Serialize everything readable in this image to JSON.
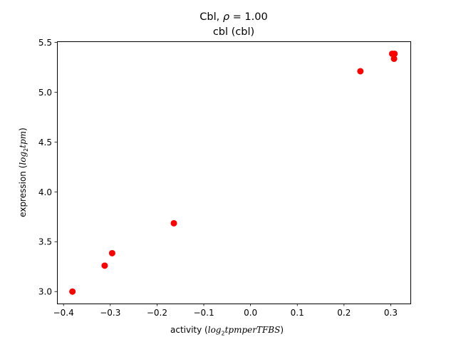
{
  "chart_data": {
    "type": "scatter",
    "title": {
      "line1_prefix": "Cbl, ",
      "line1_rho": "ρ",
      "line1_suffix": " = 1.00",
      "line2": "cbl (cbl)"
    },
    "xlabel": {
      "prefix": "activity (",
      "math_base": "log",
      "math_sub": "2",
      "math_rest": "tpmperTFBS",
      "suffix": ")"
    },
    "ylabel": {
      "prefix": "expression (",
      "math_base": "log",
      "math_sub": "2",
      "math_rest": "tpm",
      "suffix": ")"
    },
    "xlim": [
      -0.414,
      0.342
    ],
    "ylim": [
      2.88,
      5.51
    ],
    "xticks": [
      {
        "value": -0.4,
        "label": "−0.4"
      },
      {
        "value": -0.3,
        "label": "−0.3"
      },
      {
        "value": -0.2,
        "label": "−0.2"
      },
      {
        "value": -0.1,
        "label": "−0.1"
      },
      {
        "value": 0.0,
        "label": "0.0"
      },
      {
        "value": 0.1,
        "label": "0.1"
      },
      {
        "value": 0.2,
        "label": "0.2"
      },
      {
        "value": 0.3,
        "label": "0.3"
      }
    ],
    "yticks": [
      {
        "value": 3.0,
        "label": "3.0"
      },
      {
        "value": 3.5,
        "label": "3.5"
      },
      {
        "value": 4.0,
        "label": "4.0"
      },
      {
        "value": 4.5,
        "label": "4.5"
      },
      {
        "value": 5.0,
        "label": "5.0"
      },
      {
        "value": 5.5,
        "label": "5.5"
      }
    ],
    "grid": false,
    "marker_color": "#ff0000",
    "points": [
      {
        "x": -0.381,
        "y": 3.0
      },
      {
        "x": -0.312,
        "y": 3.26
      },
      {
        "x": -0.296,
        "y": 3.385
      },
      {
        "x": -0.164,
        "y": 3.685
      },
      {
        "x": 0.235,
        "y": 5.21
      },
      {
        "x": 0.303,
        "y": 5.385
      },
      {
        "x": 0.308,
        "y": 5.385
      },
      {
        "x": 0.307,
        "y": 5.335
      }
    ]
  }
}
